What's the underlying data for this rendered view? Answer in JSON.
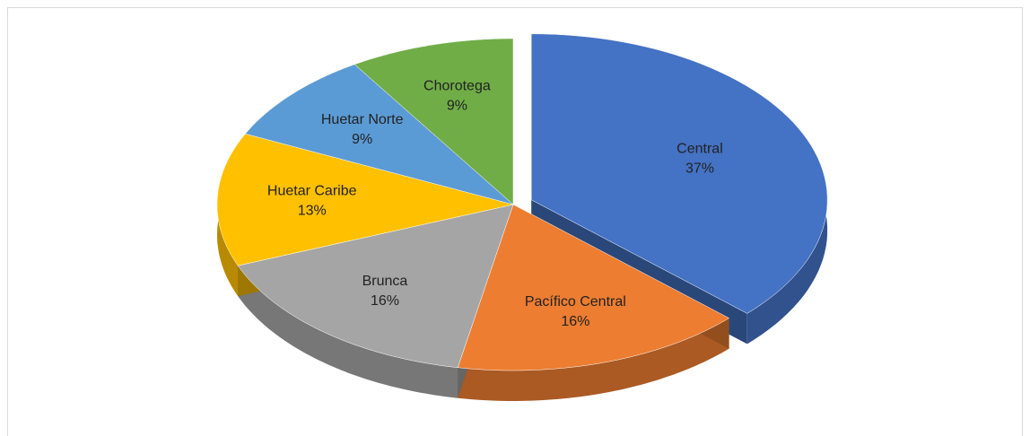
{
  "chart_data": {
    "type": "pie",
    "categories": [
      "Central",
      "Pacífico Central",
      "Brunca",
      "Huetar Caribe",
      "Huetar Norte",
      "Chorotega"
    ],
    "values": [
      37,
      16,
      16,
      13,
      9,
      9
    ],
    "value_labels": [
      "37%",
      "16%",
      "16%",
      "13%",
      "9%",
      "9%"
    ],
    "colors": [
      "#4472c4",
      "#ed7d31",
      "#a5a5a5",
      "#ffc000",
      "#5b9bd5",
      "#70ad47"
    ]
  }
}
